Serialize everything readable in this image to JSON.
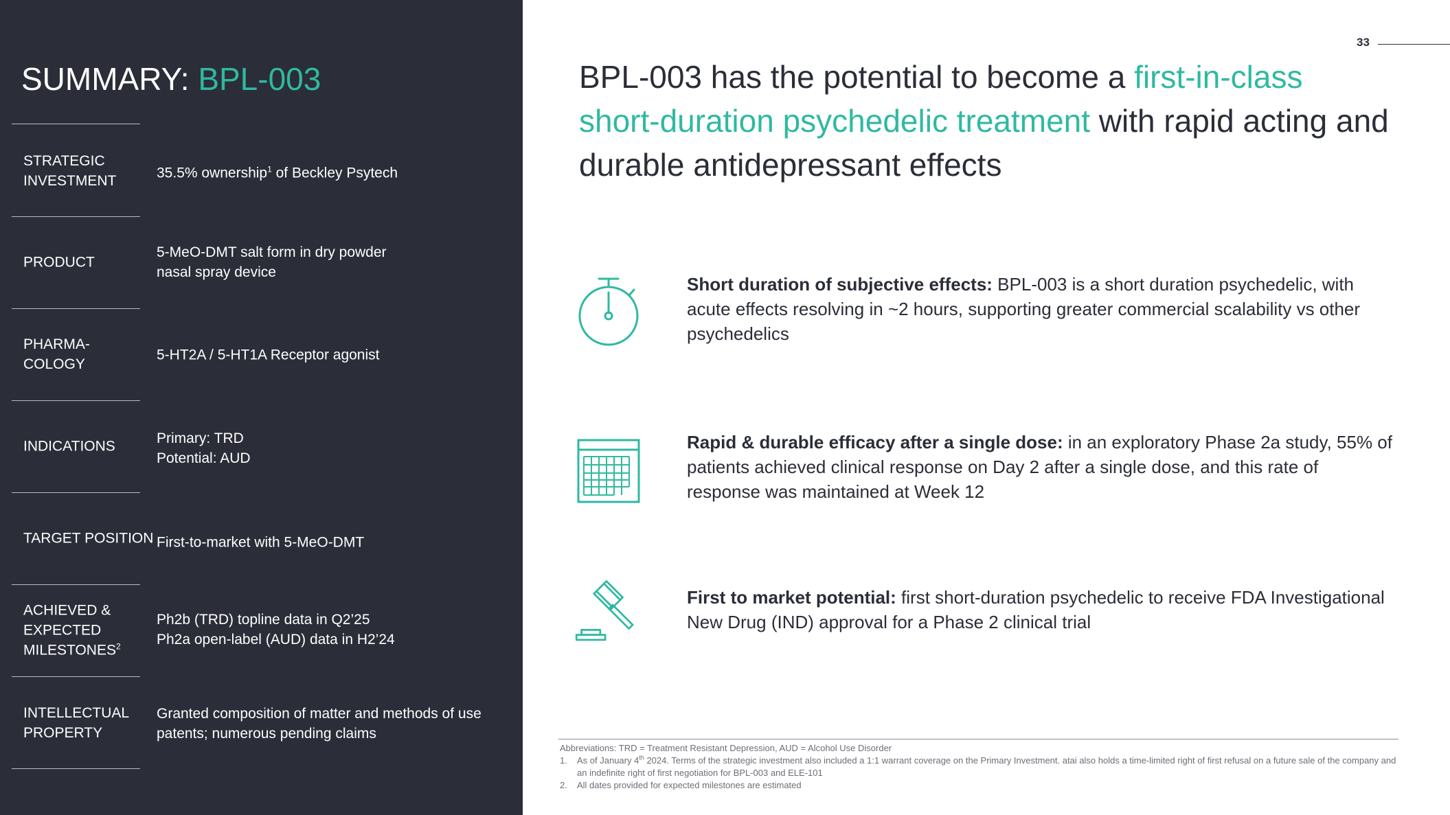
{
  "page_number": "33",
  "left": {
    "title_prefix": "SUMMARY: ",
    "title_highlight": "BPL-003",
    "rows": [
      {
        "label": [
          "STRATEGIC",
          "INVESTMENT"
        ],
        "value": {
          "pre": "35.5% ownership",
          "sup": "1",
          "post": " of Beckley Psytech"
        }
      },
      {
        "label": [
          "PRODUCT"
        ],
        "value": {
          "lines": [
            "5-MeO-DMT salt form in dry powder",
            "nasal spray device"
          ]
        }
      },
      {
        "label": [
          "PHARMA-",
          "COLOGY"
        ],
        "value": {
          "lines": [
            "5-HT2A / 5-HT1A Receptor agonist"
          ]
        }
      },
      {
        "label": [
          "INDICATIONS"
        ],
        "value": {
          "lines": [
            "Primary: TRD",
            "Potential: AUD"
          ]
        }
      },
      {
        "label": [
          "TARGET POSITION"
        ],
        "value": {
          "lines": [
            "First-to-market with 5-MeO-DMT"
          ]
        }
      },
      {
        "label": [
          "ACHIEVED &",
          "EXPECTED",
          "MILESTONES"
        ],
        "label_sup": "2",
        "value": {
          "lines": [
            "Ph2b (TRD) topline data in Q2’25",
            "Ph2a open-label (AUD) data in H2’24"
          ]
        }
      },
      {
        "label": [
          "INTELLECTUAL",
          "PROPERTY"
        ],
        "value": {
          "lines": [
            "Granted composition of matter and methods of use",
            "patents; numerous pending claims"
          ]
        }
      }
    ]
  },
  "headline": {
    "part1": "BPL-003 has the potential to become a ",
    "highlight": "first-in-class short-duration psychedelic treatment",
    "part2": " with rapid acting and durable antidepressant effects"
  },
  "features": [
    {
      "icon": "stopwatch-icon",
      "bold": "Short duration of subjective effects:",
      "text": " BPL-003 is a short duration psychedelic, with acute effects resolving in ~2 hours, supporting greater commercial scalability vs other psychedelics"
    },
    {
      "icon": "calendar-icon",
      "bold": "Rapid & durable efficacy after a single dose:",
      "text": " in an exploratory Phase 2a study, 55% of patients achieved clinical response on Day 2 after a single dose, and this rate of response was maintained at Week 12"
    },
    {
      "icon": "gavel-icon",
      "bold": "First to market potential:",
      "text": " first short-duration psychedelic to receive FDA Investigational New Drug (IND) approval for a Phase 2 clinical trial"
    }
  ],
  "footnotes": {
    "abbreviations": "Abbreviations: TRD = Treatment Resistant Depression, AUD = Alcohol Use Disorder",
    "notes": [
      {
        "num": "1.",
        "pre": "As of January 4",
        "sup": "th",
        "post": " 2024. Terms of the strategic investment also included a 1:1 warrant coverage on the Primary Investment. atai also holds a time-limited right of first refusal on a future sale of the company and an indefinite right of first negotiation for BPL-003 and ELE-101"
      },
      {
        "num": "2.",
        "text": "All dates provided for expected milestones  are estimated"
      }
    ]
  },
  "colors": {
    "panel": "#2b2d38",
    "accent": "#2fb9a1",
    "text": "#2b2d38"
  }
}
